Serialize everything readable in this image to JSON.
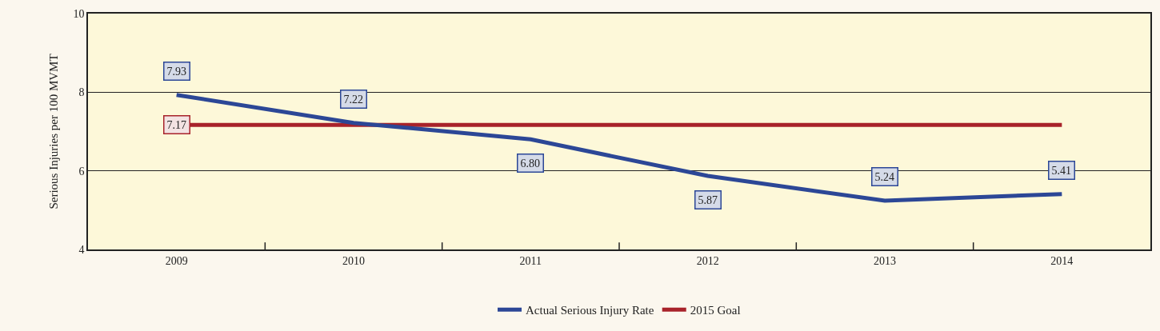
{
  "chart_data": {
    "type": "line",
    "ylabel": "Serious Injuries per 100 MVMT",
    "categories": [
      "2009",
      "2010",
      "2011",
      "2012",
      "2013",
      "2014"
    ],
    "series": [
      {
        "name": "Actual Serious Injury Rate",
        "color": "#2c4796",
        "values": [
          7.93,
          7.22,
          6.8,
          5.87,
          5.24,
          5.41
        ],
        "value_labels": [
          "7.93",
          "7.22",
          "6.80",
          "5.87",
          "5.24",
          "5.41"
        ]
      },
      {
        "name": "2015 Goal",
        "color": "#a8232a",
        "values": [
          7.17,
          7.17,
          7.17,
          7.17,
          7.17,
          7.17
        ],
        "value_labels": [
          "7.17",
          null,
          null,
          null,
          null,
          null
        ]
      }
    ],
    "ylim": [
      4,
      10
    ],
    "yticks": [
      4,
      6,
      8,
      10
    ],
    "grid": "y",
    "legend": "bottom",
    "marker": "none",
    "line_style": "solid"
  }
}
